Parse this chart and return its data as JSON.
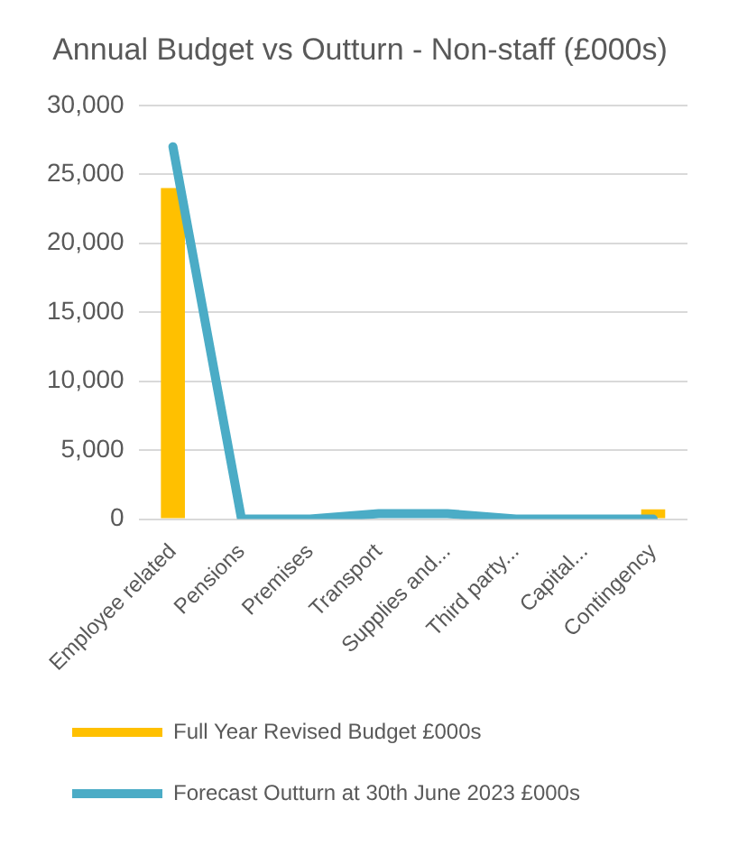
{
  "chart_data": {
    "type": "bar",
    "title": "Annual Budget vs Outturn - Non-staff (£000s)",
    "categories": [
      "Employee related",
      "Pensions",
      "Premises",
      "Transport",
      "Supplies and...",
      "Third party...",
      "Capital...",
      "Contingency"
    ],
    "series": [
      {
        "name": "Full Year Revised Budget £000s",
        "color": "#ffc000",
        "values": [
          24000,
          0,
          0,
          0,
          0,
          0,
          0,
          700
        ]
      },
      {
        "name": "Forecast Outturn at 30th June 2023 £000s",
        "type": "line",
        "color": "#4bacc6",
        "values": [
          27000,
          0,
          0,
          400,
          400,
          0,
          0,
          0
        ]
      }
    ],
    "ylim": [
      0,
      30000
    ],
    "yticks": [
      0,
      {
        "value": 5000,
        "label": "5,000"
      },
      {
        "value": 10000,
        "label": "10,000"
      },
      {
        "value": 15000,
        "label": "15,000"
      },
      {
        "value": 20000,
        "label": "20,000"
      },
      {
        "value": 25000,
        "label": "25,000"
      },
      {
        "value": 30000,
        "label": "30,000"
      }
    ],
    "grid": "y",
    "legend": "bottom",
    "marker": "none",
    "line_style": "solid"
  }
}
